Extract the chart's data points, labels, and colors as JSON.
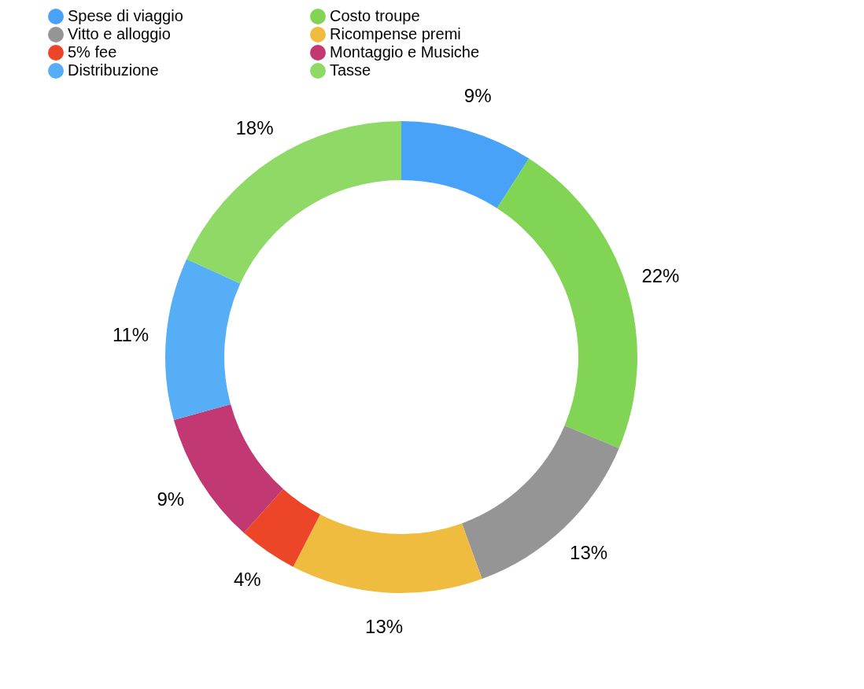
{
  "chart_data": {
    "type": "donut",
    "categories": [
      "Spese di viaggio",
      "Costo troupe",
      "Vitto e alloggio",
      "Ricompense premi",
      "5% fee",
      "Montaggio e Musiche",
      "Distribuzione",
      "Tasse"
    ],
    "values": [
      9,
      22,
      13,
      13,
      4,
      9,
      11,
      18
    ],
    "value_labels": [
      "9%",
      "22%",
      "13%",
      "13%",
      "4%",
      "9%",
      "11%",
      "18%"
    ],
    "colors": [
      "#48a2f7",
      "#82d454",
      "#959595",
      "#efbc40",
      "#ec4528",
      "#c23873",
      "#56aef6",
      "#8fd966"
    ],
    "legend": "top"
  }
}
